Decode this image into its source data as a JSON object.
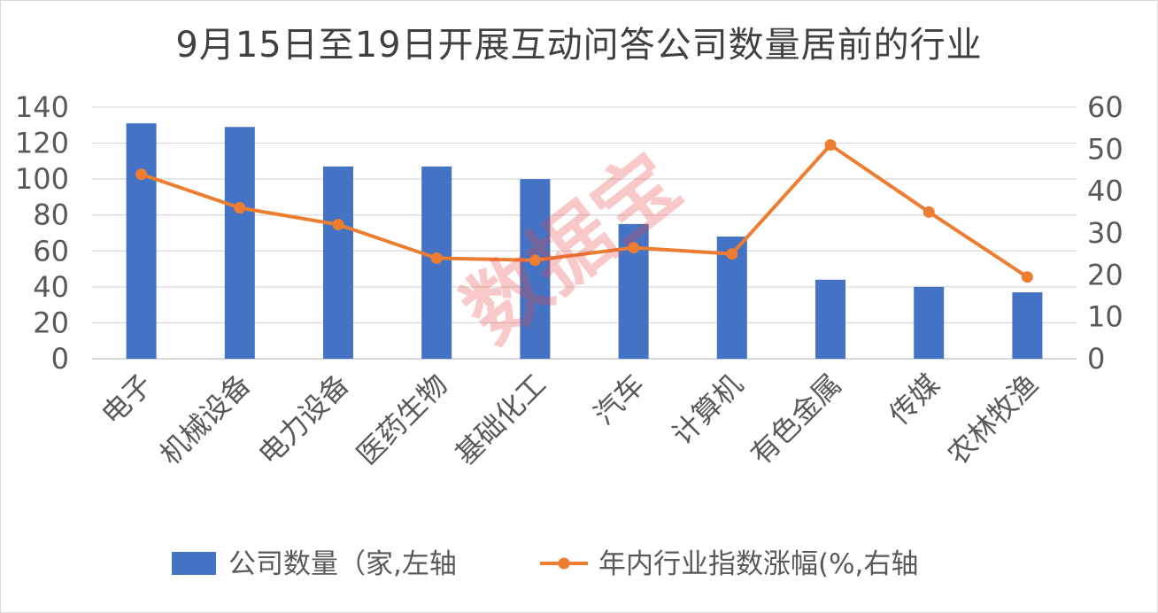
{
  "chart_data": {
    "type": "bar",
    "title": "9月15日至19日开展互动问答公司数量居前的行业",
    "categories": [
      "电子",
      "机械设备",
      "电力设备",
      "医药生物",
      "基础化工",
      "汽车",
      "计算机",
      "有色金属",
      "传媒",
      "农林牧渔"
    ],
    "series": [
      {
        "name": "公司数量（家,左轴",
        "type": "bar",
        "axis": "left",
        "color": "#4472c4",
        "values": [
          131,
          129,
          107,
          107,
          100,
          75,
          68,
          44,
          40,
          37
        ]
      },
      {
        "name": "年内行业指数涨幅(%,右轴",
        "type": "line",
        "axis": "right",
        "color": "#ed7d31",
        "values": [
          44,
          36,
          32,
          24,
          23.5,
          26.5,
          25,
          51,
          35,
          19.5
        ]
      }
    ],
    "y_left": {
      "ylim": [
        0,
        140
      ],
      "ticks": [
        "0",
        "20",
        "40",
        "60",
        "80",
        "100",
        "120",
        "140"
      ]
    },
    "y_right": {
      "ylim": [
        0,
        60
      ],
      "ticks": [
        "0",
        "10",
        "20",
        "30",
        "40",
        "50",
        "60"
      ]
    },
    "grid": true,
    "legend": "bottom"
  },
  "watermark": "数据宝"
}
